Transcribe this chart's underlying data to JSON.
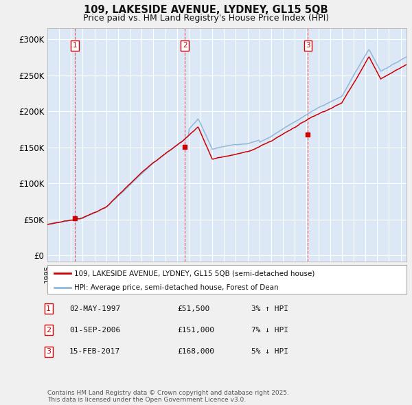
{
  "title_line1": "109, LAKESIDE AVENUE, LYDNEY, GL15 5QB",
  "title_line2": "Price paid vs. HM Land Registry's House Price Index (HPI)",
  "yticks": [
    0,
    50000,
    100000,
    150000,
    200000,
    250000,
    300000
  ],
  "ytick_labels": [
    "£0",
    "£50K",
    "£100K",
    "£150K",
    "£200K",
    "£250K",
    "£300K"
  ],
  "ylim": [
    -8000,
    315000
  ],
  "xlim_start": 1995.0,
  "xlim_end": 2025.5,
  "sale_dates": [
    1997.33,
    2006.67,
    2017.12
  ],
  "sale_prices": [
    51500,
    151000,
    168000
  ],
  "sale_labels": [
    "1",
    "2",
    "3"
  ],
  "hpi_color": "#90b8d8",
  "price_color": "#cc0000",
  "vline_color": "#dd4444",
  "plot_bg_color": "#dce8f5",
  "legend_price_label": "109, LAKESIDE AVENUE, LYDNEY, GL15 5QB (semi-detached house)",
  "legend_hpi_label": "HPI: Average price, semi-detached house, Forest of Dean",
  "table_rows": [
    [
      "1",
      "02-MAY-1997",
      "£51,500",
      "3% ↑ HPI"
    ],
    [
      "2",
      "01-SEP-2006",
      "£151,000",
      "7% ↓ HPI"
    ],
    [
      "3",
      "15-FEB-2017",
      "£168,000",
      "5% ↓ HPI"
    ]
  ],
  "footnote": "Contains HM Land Registry data © Crown copyright and database right 2025.\nThis data is licensed under the Open Government Licence v3.0.",
  "background_color": "#f0f0f0",
  "grid_color": "#ffffff"
}
